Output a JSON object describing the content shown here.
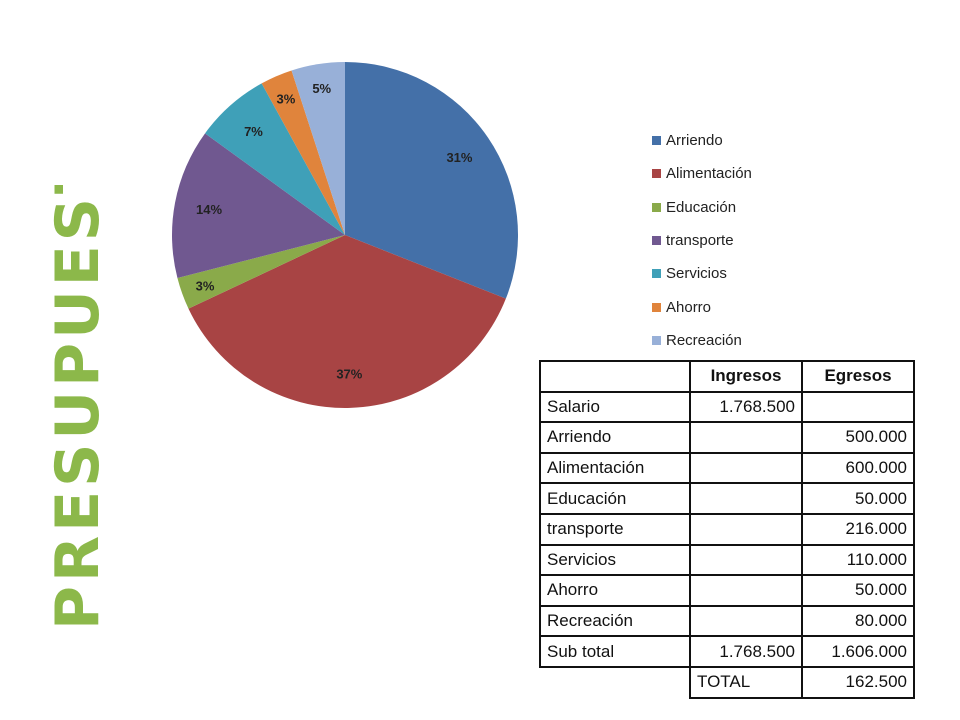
{
  "title": "PRESUPUESTO",
  "colors": {
    "title": "#8cb84a",
    "arriendo": "#4470a8",
    "alimentacion": "#a84444",
    "educacion": "#8aaa4a",
    "transporte": "#705890",
    "servicios": "#3fa0b8",
    "ahorro": "#e0843c",
    "recreacion": "#98b0d8"
  },
  "chart_data": {
    "type": "pie",
    "legend_position": "right",
    "slices": [
      {
        "label": "Arriendo",
        "value": 31,
        "display": "31%",
        "color": "#4470a8"
      },
      {
        "label": "Alimentación",
        "value": 37,
        "display": "37%",
        "color": "#a84444"
      },
      {
        "label": "Educación",
        "value": 3,
        "display": "3%",
        "color": "#8aaa4a"
      },
      {
        "label": "transporte",
        "value": 14,
        "display": "14%",
        "color": "#705890"
      },
      {
        "label": "Servicios",
        "value": 7,
        "display": "7%",
        "color": "#3fa0b8"
      },
      {
        "label": "Ahorro",
        "value": 3,
        "display": "3%",
        "color": "#e0843c"
      },
      {
        "label": "Recreación",
        "value": 5,
        "display": "5%",
        "color": "#98b0d8"
      }
    ]
  },
  "table": {
    "headers": {
      "ingresos": "Ingresos",
      "egresos": "Egresos"
    },
    "rows": [
      {
        "label": "Salario",
        "ingresos": "1.768.500",
        "egresos": ""
      },
      {
        "label": "Arriendo",
        "ingresos": "",
        "egresos": "500.000"
      },
      {
        "label": "Alimentación",
        "ingresos": "",
        "egresos": "600.000"
      },
      {
        "label": "Educación",
        "ingresos": "",
        "egresos": "50.000"
      },
      {
        "label": "transporte",
        "ingresos": "",
        "egresos": "216.000"
      },
      {
        "label": "Servicios",
        "ingresos": "",
        "egresos": "110.000"
      },
      {
        "label": "Ahorro",
        "ingresos": "",
        "egresos": "50.000"
      },
      {
        "label": "Recreación",
        "ingresos": "",
        "egresos": "80.000"
      },
      {
        "label": "Sub total",
        "ingresos": "1.768.500",
        "egresos": "1.606.000"
      }
    ],
    "total": {
      "label": "TOTAL",
      "value": "162.500"
    }
  }
}
